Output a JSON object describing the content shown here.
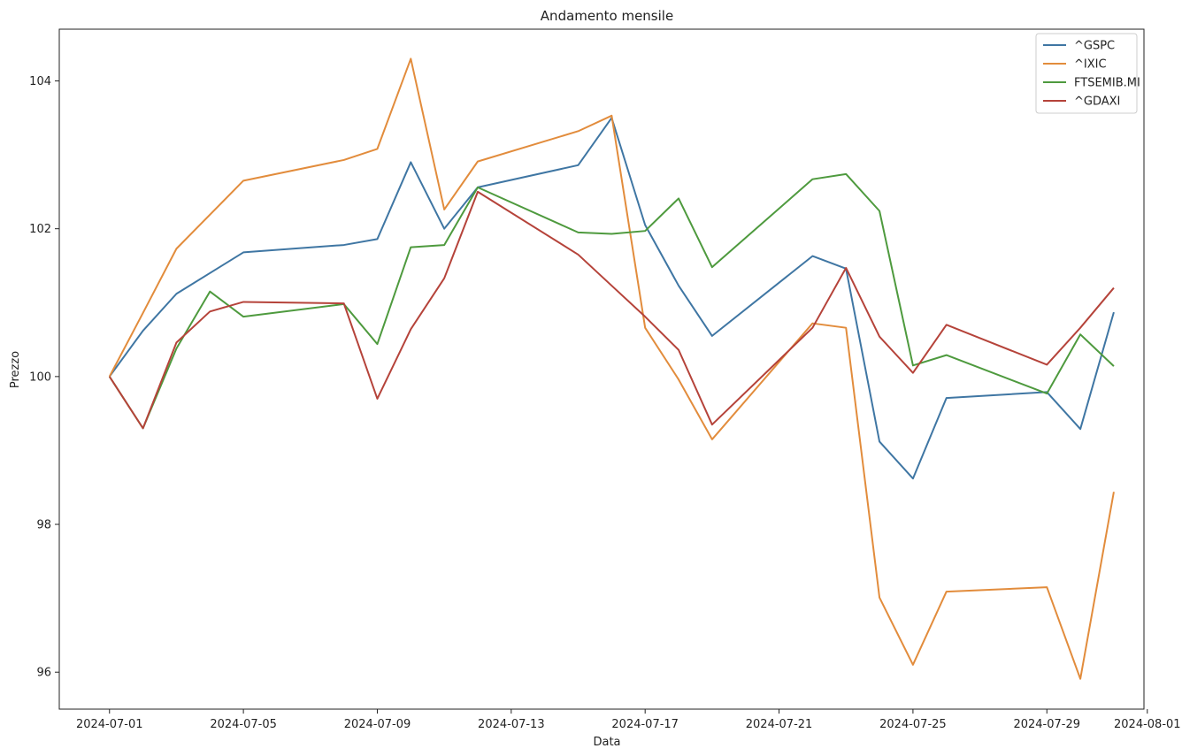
{
  "chart_data": {
    "type": "line",
    "title": "Andamento mensile",
    "xlabel": "Data",
    "ylabel": "Prezzo",
    "x": [
      "2024-07-01",
      "2024-07-02",
      "2024-07-03",
      "2024-07-04",
      "2024-07-05",
      "2024-07-08",
      "2024-07-09",
      "2024-07-10",
      "2024-07-11",
      "2024-07-12",
      "2024-07-15",
      "2024-07-16",
      "2024-07-17",
      "2024-07-18",
      "2024-07-19",
      "2024-07-22",
      "2024-07-23",
      "2024-07-24",
      "2024-07-25",
      "2024-07-26",
      "2024-07-29",
      "2024-07-30",
      "2024-07-31"
    ],
    "xlim": [
      "2024-06-29.5",
      "2024-07-31.9"
    ],
    "ylim": [
      95.5,
      104.7
    ],
    "x_ticks": [
      "2024-07-01",
      "2024-07-05",
      "2024-07-09",
      "2024-07-13",
      "2024-07-17",
      "2024-07-21",
      "2024-07-25",
      "2024-07-29",
      "2024-08-01"
    ],
    "y_ticks": [
      96,
      98,
      100,
      102,
      104
    ],
    "grid": false,
    "legend_position": "top-right",
    "series": [
      {
        "name": "^GSPC",
        "color": "#3f76a3",
        "values": [
          100.0,
          100.62,
          101.12,
          null,
          101.68,
          101.78,
          101.86,
          102.9,
          102.0,
          102.56,
          102.86,
          103.5,
          102.05,
          101.23,
          100.55,
          101.63,
          101.46,
          99.12,
          98.62,
          99.71,
          99.79,
          99.29,
          100.87
        ]
      },
      {
        "name": "^IXIC",
        "color": "#e28c3c",
        "values": [
          100.0,
          100.86,
          101.73,
          null,
          102.65,
          102.93,
          103.08,
          104.3,
          102.26,
          102.91,
          103.32,
          103.53,
          100.66,
          99.96,
          99.15,
          100.72,
          100.66,
          97.01,
          96.1,
          97.09,
          97.15,
          95.91,
          98.44
        ]
      },
      {
        "name": "FTSEMIB.MI",
        "color": "#4e9a3e",
        "values": [
          100.0,
          99.3,
          100.38,
          101.15,
          100.81,
          100.98,
          100.44,
          101.75,
          101.78,
          102.56,
          101.95,
          101.93,
          101.97,
          102.41,
          101.48,
          102.67,
          102.74,
          102.24,
          100.15,
          100.29,
          99.77,
          100.57,
          100.14
        ]
      },
      {
        "name": "^GDAXI",
        "color": "#b5433a",
        "values": [
          100.0,
          99.3,
          100.46,
          100.88,
          101.01,
          100.99,
          99.7,
          100.64,
          101.33,
          102.5,
          101.65,
          101.23,
          100.81,
          100.36,
          99.35,
          100.66,
          101.47,
          100.54,
          100.05,
          100.7,
          100.16,
          100.66,
          101.2
        ]
      }
    ]
  }
}
